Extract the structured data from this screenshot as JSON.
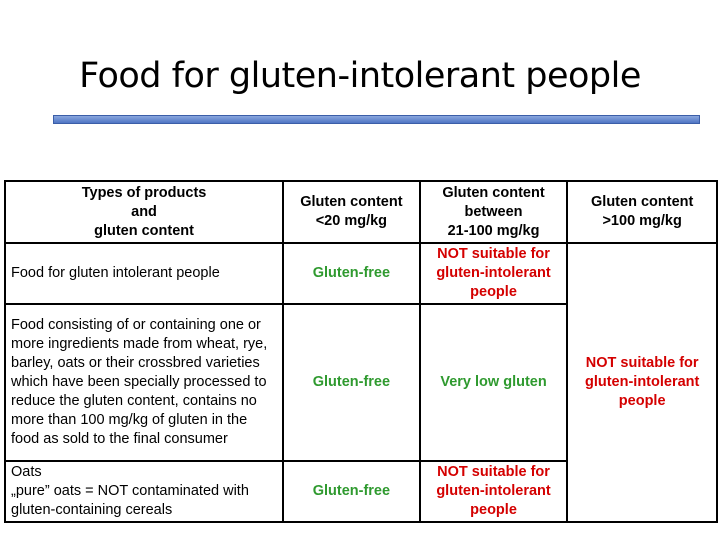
{
  "header": {
    "title": "Food for gluten-intolerant people"
  },
  "table": {
    "columns": [
      "Types of products\nand\ngluten content",
      "Gluten content\n<20 mg/kg",
      "Gluten content\nbetween\n21-100 mg/kg",
      "Gluten content\n>100 mg/kg"
    ],
    "rows": [
      [
        "Food for gluten intolerant people",
        "Gluten-free",
        "NOT suitable for\ngluten-intolerant\npeople"
      ],
      [
        "Food consisting of or containing one or more ingredients made from wheat, rye, barley, oats or their crossbred varieties which have been specially processed to reduce the gluten content, contains no more than 100 mg/kg of gluten in the food as sold to the final consumer",
        "Gluten-free",
        "Very low gluten"
      ],
      [
        "Oats\n„pure” oats = NOT contaminated with gluten-containing cereals",
        "Gluten-free",
        "NOT suitable for\ngluten-intolerant\npeople"
      ]
    ],
    "merged_cell": "NOT suitable for\ngluten-intolerant\npeople"
  }
}
